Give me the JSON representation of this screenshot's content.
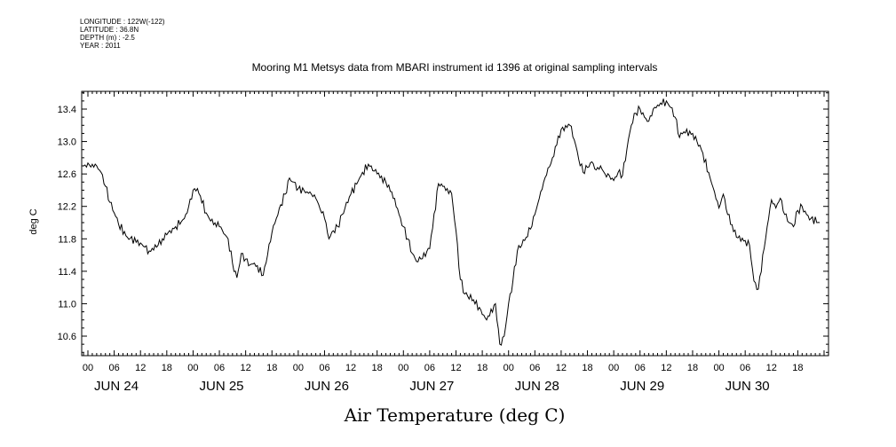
{
  "header": {
    "longitude": "LONGITUDE : 122W(-122)",
    "latitude": "LATITUDE : 36.8N",
    "depth": "DEPTH (m) : -2.5",
    "year": "YEAR : 2011"
  },
  "chart_data": {
    "type": "line",
    "title": "Mooring M1 Metsys data from MBARI instrument id 1396 at original sampling intervals",
    "xlabel": "Air Temperature (deg C)",
    "ylabel": "deg C",
    "ylim": [
      10.4,
      13.6
    ],
    "xlim_hours": [
      0,
      168
    ],
    "yticks": [
      "10.6",
      "11.0",
      "11.4",
      "11.8",
      "12.2",
      "12.6",
      "13.0",
      "13.4"
    ],
    "hour_tick_labels": [
      "00",
      "06",
      "12",
      "18"
    ],
    "day_labels": [
      "JUN 24",
      "JUN 25",
      "JUN 26",
      "JUN 27",
      "JUN 28",
      "JUN 29",
      "JUN 30"
    ],
    "grid": false,
    "line_color": "#000000",
    "series": [
      {
        "x_hours": [
          -1,
          1,
          2,
          3,
          4,
          5,
          6,
          7,
          9,
          12,
          14,
          16,
          18,
          20,
          22,
          23,
          24,
          25,
          27,
          28,
          30,
          32,
          33,
          34,
          35,
          36,
          37,
          38,
          40,
          41,
          42,
          44,
          45,
          46,
          47,
          48,
          50,
          51,
          52,
          54,
          55,
          56,
          57,
          58,
          60,
          62,
          64,
          66,
          68,
          70,
          71,
          72,
          73,
          74,
          75,
          76,
          78,
          80,
          82,
          83,
          84,
          85,
          86,
          88,
          91,
          93,
          94,
          95,
          96,
          97,
          98,
          100,
          101,
          102,
          103,
          104,
          106,
          108,
          110,
          111,
          112,
          113,
          114,
          115,
          116,
          117,
          118,
          119,
          120,
          121,
          122,
          123,
          124,
          125,
          126,
          127,
          128,
          129,
          130,
          132,
          133,
          134,
          135,
          136,
          138,
          140,
          142,
          143,
          144,
          145,
          146,
          148,
          150,
          151,
          152,
          153,
          155,
          156,
          157,
          158,
          159,
          160,
          161,
          162,
          163,
          164,
          165,
          167
        ],
        "y": [
          12.7,
          12.72,
          12.7,
          12.62,
          12.45,
          12.25,
          12.12,
          11.98,
          11.82,
          11.75,
          11.65,
          11.72,
          11.85,
          11.95,
          12.05,
          12.2,
          12.4,
          12.42,
          12.12,
          12.02,
          11.95,
          11.8,
          11.5,
          11.32,
          11.62,
          11.55,
          11.48,
          11.5,
          11.35,
          11.6,
          11.88,
          12.22,
          12.35,
          12.55,
          12.5,
          12.42,
          12.38,
          12.35,
          12.3,
          12.05,
          11.8,
          11.9,
          11.95,
          12.1,
          12.35,
          12.55,
          12.72,
          12.6,
          12.5,
          12.3,
          12.1,
          11.95,
          11.8,
          11.62,
          11.52,
          11.55,
          11.68,
          12.48,
          12.42,
          12.36,
          11.9,
          11.3,
          11.12,
          11.05,
          10.8,
          11.0,
          10.5,
          10.6,
          11.0,
          11.28,
          11.65,
          11.82,
          11.92,
          12.1,
          12.3,
          12.5,
          12.8,
          13.15,
          13.2,
          13.02,
          12.78,
          12.62,
          12.68,
          12.75,
          12.65,
          12.7,
          12.6,
          12.58,
          12.52,
          12.62,
          12.58,
          12.9,
          13.2,
          13.35,
          13.4,
          13.3,
          13.25,
          13.4,
          13.45,
          13.5,
          13.42,
          13.3,
          13.05,
          13.12,
          13.1,
          12.9,
          12.55,
          12.38,
          12.18,
          12.35,
          12.1,
          11.82,
          11.78,
          11.72,
          11.28,
          11.18,
          11.95,
          12.28,
          12.18,
          12.3,
          12.1,
          12.0,
          11.95,
          12.15,
          12.2,
          12.1,
          12.05,
          12.0
        ]
      }
    ]
  }
}
